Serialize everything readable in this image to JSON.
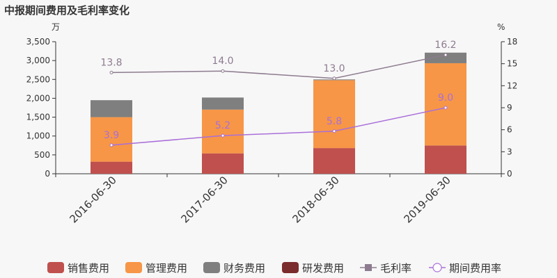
{
  "chart_data": {
    "type": "bar",
    "title": "中报期间费用及毛利率变化",
    "left_unit": "万",
    "right_unit": "%",
    "categories": [
      "2016-06-30",
      "2017-06-30",
      "2018-06-30",
      "2019-06-30"
    ],
    "y_left": {
      "lim": [
        0,
        3500
      ],
      "ticks": [
        "0",
        "500",
        "1,000",
        "1,500",
        "2,000",
        "2,500",
        "3,000",
        "3,500"
      ]
    },
    "y_right": {
      "lim": [
        0,
        18
      ],
      "ticks": [
        "0",
        "3",
        "6",
        "9",
        "12",
        "15",
        "18"
      ]
    },
    "bar_series": [
      {
        "name": "销售费用",
        "color": "#c0504d",
        "values": [
          320,
          540,
          680,
          750
        ]
      },
      {
        "name": "管理费用",
        "color": "#f79646",
        "values": [
          1180,
          1160,
          1800,
          2180
        ]
      },
      {
        "name": "财务费用",
        "color": "#7f7f7f",
        "values": [
          450,
          320,
          20,
          280
        ]
      },
      {
        "name": "研发费用",
        "color": "#7b2c2c",
        "values": [
          0,
          0,
          0,
          0
        ]
      }
    ],
    "line_series": [
      {
        "name": "毛利率",
        "color": "#8d7b8f",
        "marker": "square",
        "values": [
          13.8,
          14.0,
          13.0,
          16.2
        ],
        "labels": [
          "13.8",
          "14.0",
          "13.0",
          "16.2"
        ]
      },
      {
        "name": "期间费用率",
        "color": "#a96fd9",
        "marker": "circle",
        "values": [
          3.9,
          5.2,
          5.8,
          9.0
        ],
        "labels": [
          "3.9",
          "5.2",
          "5.8",
          "9.0"
        ]
      }
    ],
    "legend_position": "bottom",
    "grid": false
  }
}
